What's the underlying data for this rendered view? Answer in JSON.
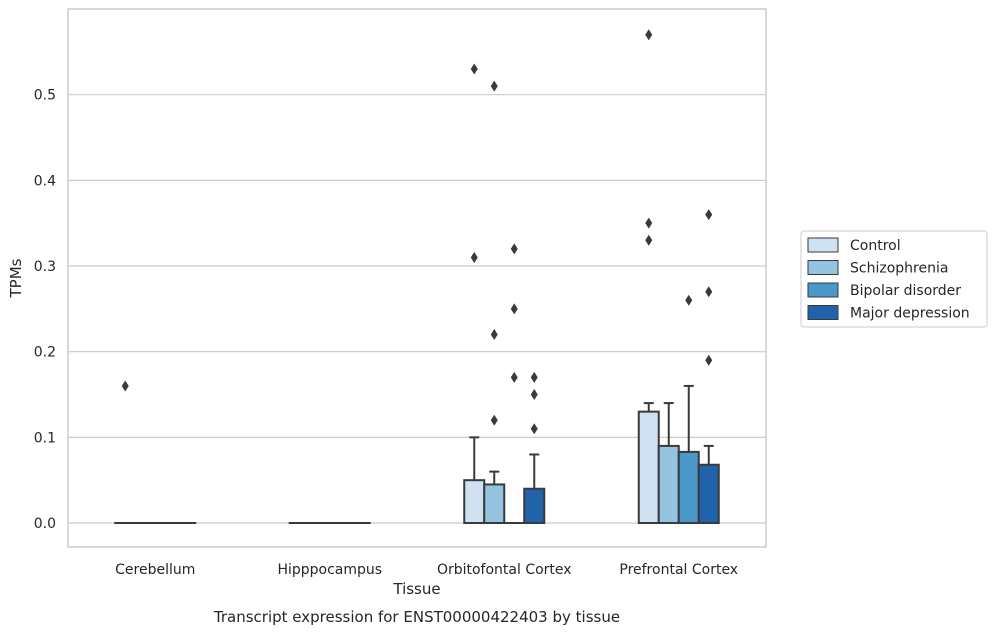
{
  "caption": "Transcript expression for ENST00000422403 by tissue",
  "chart_data": {
    "type": "bar",
    "xlabel": "Tissue",
    "ylabel": "TPMs",
    "ylim": [
      -0.028,
      0.6
    ],
    "yticks": [
      0.0,
      0.1,
      0.2,
      0.3,
      0.4,
      0.5
    ],
    "ytick_labels": [
      "0.0",
      "0.1",
      "0.2",
      "0.3",
      "0.4",
      "0.5"
    ],
    "categories": [
      "Cerebellum",
      "Hipppocampus",
      "Orbitofontal Cortex",
      "Prefrontal Cortex"
    ],
    "grid": "horizontal",
    "legend_position": "right",
    "series": [
      {
        "name": "Control",
        "color": "#d0e1f2",
        "values": [
          0.0,
          0.0,
          0.05,
          0.13
        ],
        "error_upper": [
          0.0,
          0.0,
          0.1,
          0.14
        ],
        "outliers": [
          [
            0.16
          ],
          [],
          [
            0.31,
            0.53
          ],
          [
            0.33,
            0.35,
            0.57
          ]
        ]
      },
      {
        "name": "Schizophrenia",
        "color": "#94c4df",
        "values": [
          0.0,
          0.0,
          0.045,
          0.09
        ],
        "error_upper": [
          0.0,
          0.0,
          0.06,
          0.14
        ],
        "outliers": [
          [],
          [],
          [
            0.12,
            0.22,
            0.51
          ],
          []
        ]
      },
      {
        "name": "Bipolar disorder",
        "color": "#4a98c9",
        "values": [
          0.0,
          0.0,
          0.0,
          0.083
        ],
        "error_upper": [
          0.0,
          0.0,
          0.0,
          0.16
        ],
        "outliers": [
          [],
          [],
          [
            0.17,
            0.25,
            0.32
          ],
          [
            0.26
          ]
        ]
      },
      {
        "name": "Major depression",
        "color": "#2163aa",
        "values": [
          0.0,
          0.0,
          0.04,
          0.068
        ],
        "error_upper": [
          0.0,
          0.0,
          0.08,
          0.09
        ],
        "outliers": [
          [],
          [],
          [
            0.11,
            0.15,
            0.17
          ],
          [
            0.19,
            0.27,
            0.36
          ]
        ]
      }
    ]
  }
}
